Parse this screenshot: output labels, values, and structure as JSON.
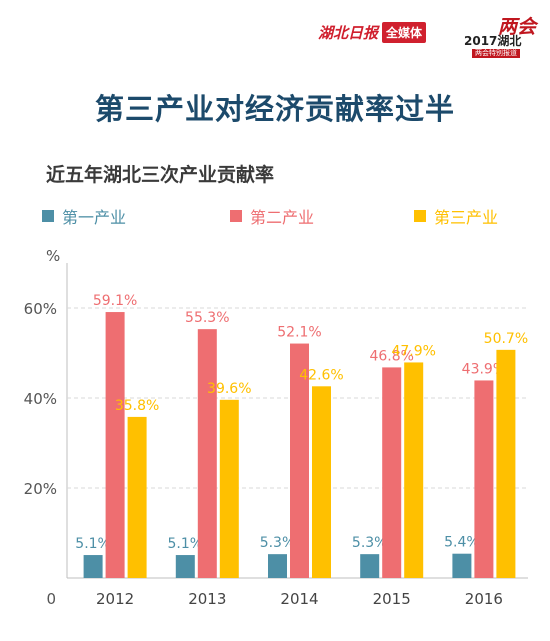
{
  "header": {
    "brand_name": "湖北日报",
    "brand_tag": "全媒体",
    "event_mark": "两会",
    "event_year": "2017湖北",
    "event_sub": "两会特别报道"
  },
  "page_title": "第三产业对经济贡献率过半",
  "colors": {
    "primary": "#4d8fa6",
    "secondary": "#ee6e71",
    "tertiary": "#ffc000",
    "grid": "#d9d9d9"
  },
  "chart_data": {
    "type": "bar",
    "title": "近五年湖北三次产业贡献率",
    "xlabel": "",
    "ylabel": "%",
    "ylim": [
      0,
      70
    ],
    "y_ticks": [
      {
        "value": 0,
        "label": "0"
      },
      {
        "value": 20,
        "label": "20%"
      },
      {
        "value": 40,
        "label": "40%"
      },
      {
        "value": 60,
        "label": "60%"
      }
    ],
    "grid": true,
    "legend_position": "top",
    "categories": [
      "2012",
      "2013",
      "2014",
      "2015",
      "2016"
    ],
    "series": [
      {
        "name": "第一产业",
        "color": "#4d8fa6",
        "values": [
          5.1,
          5.1,
          5.3,
          5.3,
          5.4
        ],
        "labels": [
          "5.1%",
          "5.1%",
          "5.3%",
          "5.3%",
          "5.4%"
        ]
      },
      {
        "name": "第二产业",
        "color": "#ee6e71",
        "values": [
          59.1,
          55.3,
          52.1,
          46.8,
          43.9
        ],
        "labels": [
          "59.1%",
          "55.3%",
          "52.1%",
          "46.8%",
          "43.9%"
        ]
      },
      {
        "name": "第三产业",
        "color": "#ffc000",
        "values": [
          35.8,
          39.6,
          42.6,
          47.9,
          50.7
        ],
        "labels": [
          "35.8%",
          "39.6%",
          "42.6%",
          "47.9%",
          "50.7%"
        ]
      }
    ]
  }
}
